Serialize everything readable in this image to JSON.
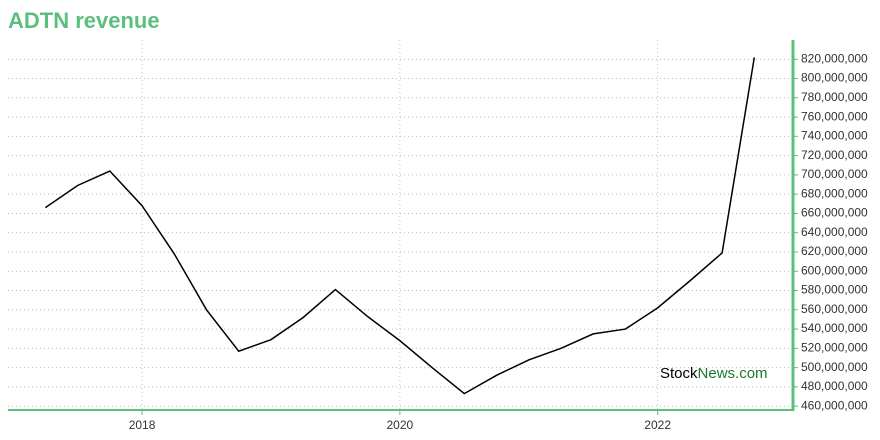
{
  "chart_data": {
    "type": "line",
    "title": "ADTN revenue",
    "x": [
      2017.25,
      2017.5,
      2017.75,
      2018,
      2018.25,
      2018.5,
      2018.75,
      2019,
      2019.25,
      2019.5,
      2019.75,
      2020,
      2020.25,
      2020.5,
      2020.75,
      2021,
      2021.25,
      2021.5,
      2021.75,
      2022,
      2022.25,
      2022.5,
      2022.75
    ],
    "series": [
      {
        "name": "revenue",
        "color": "#000000",
        "values": [
          666000000,
          689000000,
          704000000,
          668000000,
          618000000,
          560000000,
          517000000,
          529000000,
          552000000,
          581000000,
          553000000,
          528000000,
          500000000,
          473000000,
          492000000,
          508000000,
          520000000,
          535000000,
          540000000,
          562000000,
          590000000,
          619000000,
          822000000
        ]
      }
    ],
    "xlim": [
      2016.96,
      2023.05
    ],
    "xticks": [
      2018,
      2020,
      2022
    ],
    "ylim": [
      456000000,
      840000000
    ],
    "yticks": [
      {
        "value": 460000000,
        "label": "460,000,000"
      },
      {
        "value": 480000000,
        "label": "480,000,000"
      },
      {
        "value": 500000000,
        "label": "500,000,000"
      },
      {
        "value": 520000000,
        "label": "520,000,000"
      },
      {
        "value": 540000000,
        "label": "540,000,000"
      },
      {
        "value": 560000000,
        "label": "560,000,000"
      },
      {
        "value": 580000000,
        "label": "580,000,000"
      },
      {
        "value": 600000000,
        "label": "600,000,000"
      },
      {
        "value": 620000000,
        "label": "620,000,000"
      },
      {
        "value": 640000000,
        "label": "640,000,000"
      },
      {
        "value": 660000000,
        "label": "660,000,000"
      },
      {
        "value": 680000000,
        "label": "680,000,000"
      },
      {
        "value": 700000000,
        "label": "700,000,000"
      },
      {
        "value": 720000000,
        "label": "720,000,000"
      },
      {
        "value": 740000000,
        "label": "740,000,000"
      },
      {
        "value": 760000000,
        "label": "760,000,000"
      },
      {
        "value": 780000000,
        "label": "780,000,000"
      },
      {
        "value": 800000000,
        "label": "800,000,000"
      },
      {
        "value": 820000000,
        "label": "820,000,000"
      }
    ],
    "grid": true,
    "axis_color": "#5cbf7f",
    "watermark": [
      "Stock",
      "News.com"
    ]
  }
}
